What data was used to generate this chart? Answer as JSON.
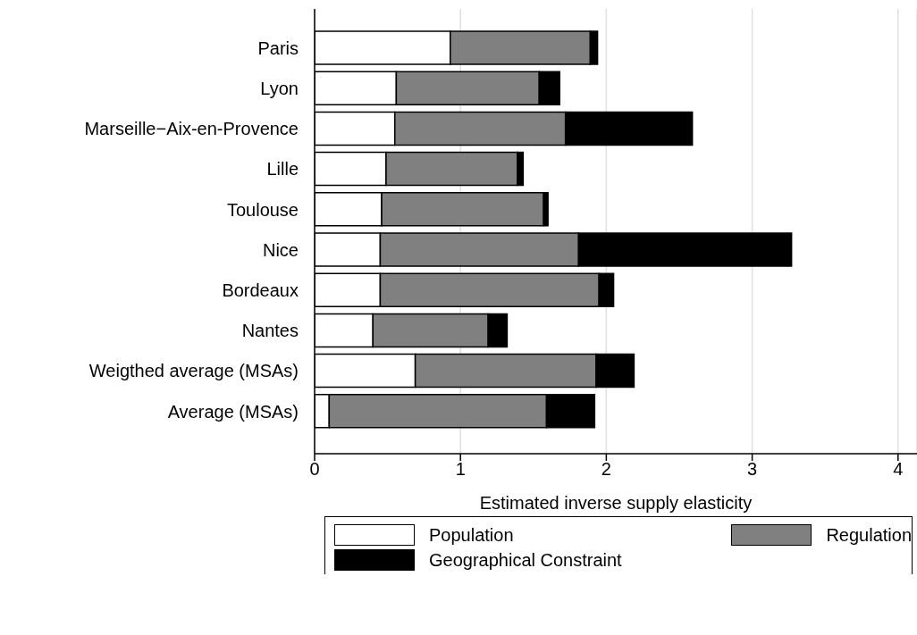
{
  "chart_data": {
    "type": "bar",
    "orientation": "horizontal",
    "stacked": true,
    "xlabel": "Estimated inverse supply elasticity",
    "categories": [
      "Paris",
      "Lyon",
      "Marseille−Aix-en-Provence",
      "Lille",
      "Toulouse",
      "Nice",
      "Bordeaux",
      "Nantes",
      "Weigthed average (MSAs)",
      "Average (MSAs)"
    ],
    "series": [
      {
        "name": "Population",
        "color": "#ffffff",
        "values": [
          0.93,
          0.56,
          0.55,
          0.49,
          0.46,
          0.45,
          0.45,
          0.4,
          0.69,
          0.1
        ]
      },
      {
        "name": "Regulation",
        "color": "#808080",
        "values": [
          0.96,
          0.98,
          1.17,
          0.9,
          1.11,
          1.36,
          1.5,
          0.79,
          1.24,
          1.49
        ]
      },
      {
        "name": "Geographical Constraint",
        "color": "#000000",
        "values": [
          0.05,
          0.14,
          0.87,
          0.04,
          0.03,
          1.46,
          0.1,
          0.13,
          0.26,
          0.33
        ]
      }
    ],
    "xlim": [
      0,
      4.13
    ],
    "xticks": [
      0,
      1,
      2,
      3,
      4
    ],
    "grid": "x",
    "legend": "bottom"
  }
}
